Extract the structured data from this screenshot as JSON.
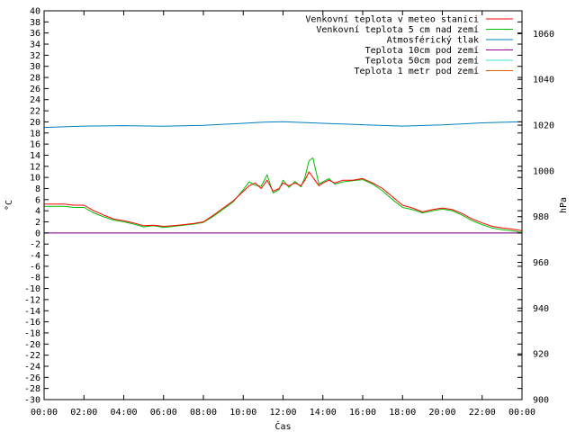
{
  "chart_data": {
    "type": "line",
    "xlabel": "Čas",
    "ylabel": "°C",
    "y2label": "hPa",
    "ylim": [
      -30,
      40
    ],
    "y2lim": [
      900,
      1070
    ],
    "xlim": [
      0,
      24
    ],
    "grid": false,
    "legend_position": "top-right",
    "x_ticks": [
      "00:00",
      "02:00",
      "04:00",
      "06:00",
      "08:00",
      "10:00",
      "12:00",
      "14:00",
      "16:00",
      "18:00",
      "20:00",
      "22:00",
      "00:00"
    ],
    "y_ticks": [
      40,
      38,
      36,
      34,
      32,
      30,
      28,
      26,
      24,
      22,
      20,
      18,
      16,
      14,
      12,
      10,
      8,
      6,
      4,
      2,
      0,
      -2,
      -4,
      -6,
      -8,
      -10,
      -12,
      -14,
      -16,
      -18,
      -20,
      -22,
      -24,
      -26,
      -28,
      -30
    ],
    "y2_ticks": [
      1060,
      1040,
      1020,
      1000,
      980,
      960,
      940,
      920,
      900
    ],
    "series": [
      {
        "name": "Venkovní teplota v meteo stanici",
        "color": "#ff0000",
        "axis": "y",
        "x": [
          0,
          1,
          1.5,
          2,
          2.5,
          3,
          3.5,
          4,
          4.5,
          5,
          5.5,
          6,
          6.5,
          7,
          7.5,
          8,
          8.5,
          9,
          9.5,
          10,
          10.3,
          10.6,
          10.9,
          11.2,
          11.5,
          11.8,
          12,
          12.3,
          12.6,
          12.9,
          13.1,
          13.3,
          13.5,
          13.8,
          14,
          14.3,
          14.6,
          15,
          15.5,
          16,
          16.5,
          17,
          17.5,
          18,
          18.5,
          19,
          19.5,
          20,
          20.5,
          21,
          21.5,
          22,
          22.5,
          23,
          23.5,
          24
        ],
        "y": [
          5.2,
          5.2,
          5.0,
          5.0,
          4.0,
          3.2,
          2.5,
          2.2,
          1.8,
          1.3,
          1.4,
          1.2,
          1.3,
          1.5,
          1.7,
          2.0,
          3.2,
          4.5,
          5.8,
          7.5,
          8.5,
          9.0,
          8.0,
          9.5,
          7.5,
          8.0,
          9.0,
          8.5,
          9.0,
          8.5,
          9.5,
          11.0,
          10.0,
          8.5,
          9.0,
          9.5,
          9.0,
          9.5,
          9.5,
          9.8,
          9.0,
          8.0,
          6.5,
          5.0,
          4.5,
          3.8,
          4.2,
          4.5,
          4.2,
          3.5,
          2.5,
          1.8,
          1.2,
          0.9,
          0.7,
          0.4
        ]
      },
      {
        "name": "Venkovní teplota 5 cm nad zemí",
        "color": "#00c000",
        "axis": "y",
        "x": [
          0,
          1,
          1.5,
          2,
          2.5,
          3,
          3.5,
          4,
          4.5,
          5,
          5.5,
          6,
          6.5,
          7,
          7.5,
          8,
          8.5,
          9,
          9.5,
          10,
          10.3,
          10.6,
          10.9,
          11.2,
          11.5,
          11.8,
          12,
          12.3,
          12.6,
          12.9,
          13.1,
          13.3,
          13.5,
          13.8,
          14,
          14.3,
          14.6,
          15,
          15.5,
          16,
          16.5,
          17,
          17.5,
          18,
          18.5,
          19,
          19.5,
          20,
          20.5,
          21,
          21.5,
          22,
          22.5,
          23,
          23.5,
          24
        ],
        "y": [
          4.8,
          4.8,
          4.6,
          4.6,
          3.6,
          2.9,
          2.3,
          2.0,
          1.6,
          1.1,
          1.3,
          1.0,
          1.2,
          1.4,
          1.6,
          1.9,
          3.0,
          4.3,
          5.6,
          7.8,
          9.2,
          8.6,
          8.4,
          10.5,
          7.2,
          7.8,
          9.5,
          8.2,
          9.3,
          8.3,
          10.0,
          13.0,
          13.5,
          8.8,
          9.2,
          9.8,
          8.8,
          9.2,
          9.4,
          9.6,
          8.8,
          7.6,
          6.0,
          4.6,
          4.2,
          3.6,
          4.0,
          4.3,
          4.0,
          3.2,
          2.2,
          1.5,
          0.9,
          0.6,
          0.4,
          0.1
        ]
      },
      {
        "name": "Atmosférický tlak",
        "color": "#0080c0",
        "axis": "y2",
        "x": [
          0,
          2,
          4,
          6,
          8,
          10,
          11,
          12,
          14,
          16,
          18,
          20,
          22,
          24
        ],
        "y": [
          1019,
          1019.6,
          1019.8,
          1019.5,
          1019.9,
          1020.8,
          1021.3,
          1021.5,
          1020.8,
          1020.2,
          1019.6,
          1020.1,
          1021,
          1021.5
        ]
      },
      {
        "name": "Teplota 10cm pod zemí",
        "color": "#a000a0",
        "axis": "y",
        "x": [
          0,
          24
        ],
        "y": [
          0,
          0
        ]
      },
      {
        "name": "Teplota 50cm pod zemí",
        "color": "#40e0d0",
        "axis": "y",
        "x": [
          0,
          24
        ],
        "y": [
          0,
          0
        ]
      },
      {
        "name": "Teplota 1 metr pod zemí",
        "color": "#e06000",
        "axis": "y",
        "x": [
          0,
          24
        ],
        "y": [
          0,
          0
        ]
      }
    ]
  }
}
